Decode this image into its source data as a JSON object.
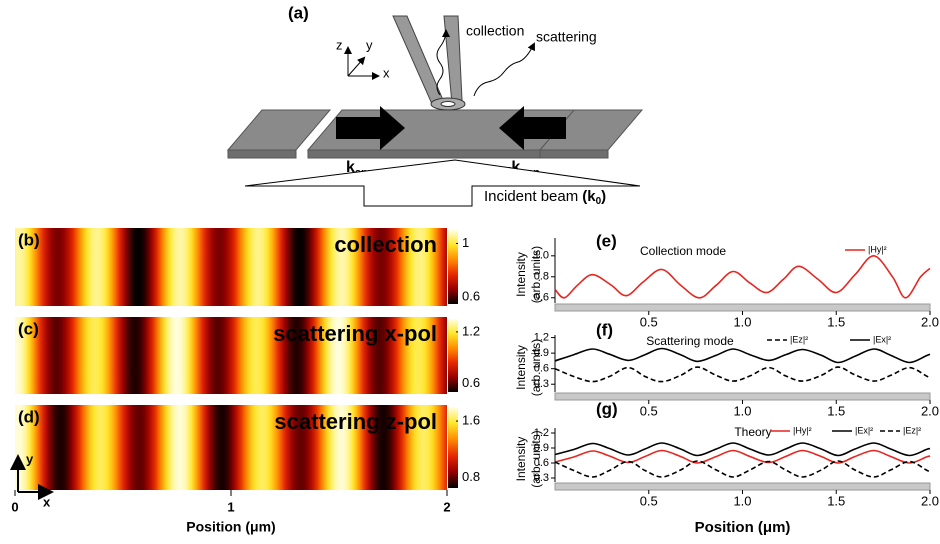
{
  "diagram": {
    "label": "(a)",
    "axes": {
      "z": "z",
      "y": "y",
      "x": "x"
    },
    "collection": "collection",
    "scattering": "scattering",
    "k": "k",
    "k_sub": "spp",
    "minus_k": "-k",
    "minus_k_sub": "spp",
    "incident": "Incident beam",
    "incident_k": "(k",
    "incident_sub": "0",
    "incident_close": ")"
  },
  "maps": [
    {
      "label": "(b)",
      "title": "collection",
      "clim": [
        0.55,
        1.1
      ],
      "cticks": [
        0.6,
        1
      ]
    },
    {
      "label": "(c)",
      "title": "scattering x-pol",
      "clim": [
        0.5,
        1.35
      ],
      "cticks": [
        0.6,
        1.2
      ]
    },
    {
      "label": "(d)",
      "title": "scattering z-pol",
      "clim": [
        0.65,
        1.8
      ],
      "cticks": [
        0.8,
        1.6
      ]
    }
  ],
  "map_axis": {
    "xlim": [
      0,
      2
    ],
    "xticks": [
      0,
      1,
      2
    ],
    "xlabel": "Position (μm)",
    "y": "y",
    "x": "x"
  },
  "chart_data": [
    {
      "type": "line",
      "label": "(e)",
      "title": "Collection mode",
      "ylabel": [
        "Intensity",
        "(arb. units)"
      ],
      "x": [
        0,
        0.05,
        0.12,
        0.2,
        0.3,
        0.38,
        0.47,
        0.57,
        0.67,
        0.77,
        0.86,
        0.95,
        1.04,
        1.13,
        1.22,
        1.3,
        1.4,
        1.5,
        1.6,
        1.7,
        1.8,
        1.87,
        1.95,
        2.0
      ],
      "series": [
        {
          "name": "|Hy|²",
          "color": "#e8251f",
          "linestyle": "solid",
          "values": [
            0.68,
            0.6,
            0.72,
            0.82,
            0.72,
            0.62,
            0.75,
            0.87,
            0.72,
            0.6,
            0.72,
            0.85,
            0.74,
            0.65,
            0.78,
            0.9,
            0.78,
            0.65,
            0.82,
            1.0,
            0.8,
            0.6,
            0.8,
            0.88
          ]
        }
      ],
      "xlim": [
        0,
        2
      ],
      "xticks": [
        0.5,
        {
          "value": 1,
          "label": "1.0"
        },
        1.5,
        {
          "value": 2,
          "label": "2.0"
        }
      ],
      "ylim": [
        0.55,
        1.17
      ],
      "yticks": [
        0.6,
        0.8,
        {
          "value": 1,
          "label": "1.0"
        }
      ]
    },
    {
      "type": "line",
      "label": "(f)",
      "title": "Scattering mode",
      "ylabel": [
        "Intensity",
        "(arb. units)"
      ],
      "x": [
        0,
        0.1,
        0.2,
        0.29,
        0.39,
        0.48,
        0.57,
        0.67,
        0.76,
        0.86,
        0.95,
        1.04,
        1.14,
        1.23,
        1.32,
        1.42,
        1.51,
        1.6,
        1.7,
        1.79,
        1.89,
        1.98,
        2.0
      ],
      "series": [
        {
          "name": "|Ez|²",
          "color": "#000000",
          "linestyle": "dashed",
          "values": [
            0.6,
            0.45,
            0.35,
            0.45,
            0.62,
            0.45,
            0.35,
            0.47,
            0.63,
            0.47,
            0.36,
            0.46,
            0.62,
            0.46,
            0.36,
            0.47,
            0.63,
            0.48,
            0.36,
            0.47,
            0.62,
            0.46,
            0.42
          ]
        },
        {
          "name": "|Ex|²",
          "color": "#000000",
          "linestyle": "solid",
          "values": [
            0.75,
            0.87,
            0.98,
            0.88,
            0.76,
            0.87,
            0.99,
            0.87,
            0.74,
            0.86,
            0.98,
            0.87,
            0.76,
            0.87,
            0.97,
            0.86,
            0.72,
            0.84,
            0.98,
            0.86,
            0.72,
            0.85,
            0.88
          ]
        }
      ],
      "xlim": [
        0,
        2
      ],
      "xticks": [
        0.5,
        {
          "value": 1,
          "label": "1.0"
        },
        1.5,
        {
          "value": 2,
          "label": "2.0"
        }
      ],
      "ylim": [
        0.15,
        1.25
      ],
      "yticks": [
        0.3,
        0.6,
        0.9,
        1.2
      ]
    },
    {
      "type": "line",
      "label": "(g)",
      "title": "Theory",
      "ylabel": [
        "Intensity",
        "(arb. units)"
      ],
      "xlabel": "Position (μm)",
      "x": [
        0,
        0.1,
        0.2,
        0.29,
        0.39,
        0.48,
        0.57,
        0.67,
        0.76,
        0.86,
        0.95,
        1.04,
        1.14,
        1.23,
        1.32,
        1.42,
        1.51,
        1.6,
        1.7,
        1.79,
        1.89,
        1.98,
        2.0
      ],
      "series": [
        {
          "name": "|Hy|²",
          "color": "#e8251f",
          "linestyle": "solid",
          "values": [
            0.62,
            0.72,
            0.84,
            0.74,
            0.61,
            0.73,
            0.85,
            0.73,
            0.6,
            0.73,
            0.85,
            0.73,
            0.61,
            0.73,
            0.85,
            0.73,
            0.6,
            0.73,
            0.85,
            0.73,
            0.6,
            0.72,
            0.74
          ]
        },
        {
          "name": "|Ex|²",
          "color": "#000000",
          "linestyle": "solid",
          "values": [
            0.77,
            0.87,
            0.99,
            0.89,
            0.76,
            0.88,
            1.0,
            0.88,
            0.75,
            0.88,
            1.0,
            0.88,
            0.76,
            0.88,
            1.0,
            0.88,
            0.75,
            0.88,
            1.0,
            0.88,
            0.75,
            0.87,
            0.89
          ]
        },
        {
          "name": "|Ez|²",
          "color": "#000000",
          "linestyle": "dashed",
          "values": [
            0.62,
            0.45,
            0.32,
            0.45,
            0.63,
            0.45,
            0.32,
            0.46,
            0.64,
            0.46,
            0.32,
            0.46,
            0.63,
            0.46,
            0.32,
            0.46,
            0.64,
            0.46,
            0.32,
            0.46,
            0.63,
            0.46,
            0.42
          ]
        }
      ],
      "xlim": [
        0,
        2
      ],
      "xticks": [
        0.5,
        {
          "value": 1,
          "label": "1.0"
        },
        1.5,
        {
          "value": 2,
          "label": "2.0"
        }
      ],
      "ylim": [
        0.22,
        1.3
      ],
      "yticks": [
        0.3,
        0.6,
        0.9,
        1.2
      ]
    }
  ]
}
